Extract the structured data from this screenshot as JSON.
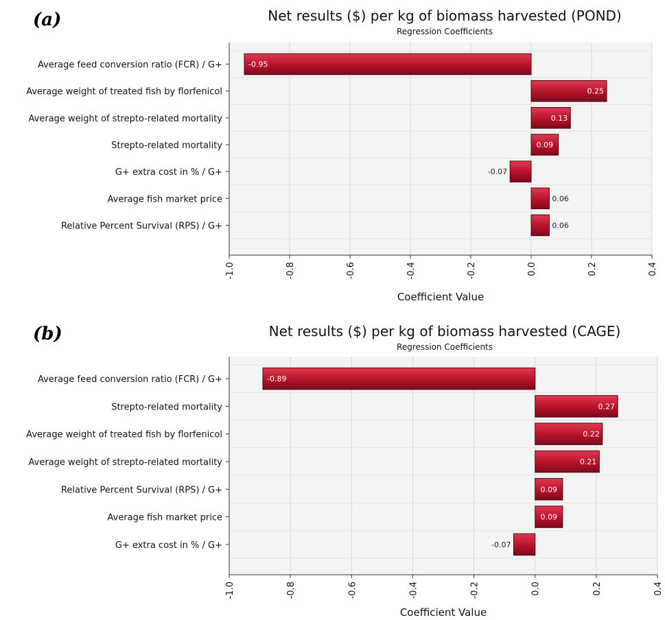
{
  "chart_data": [
    {
      "panel_label": "(a)",
      "type": "bar",
      "orientation": "horizontal",
      "title": "Net results ($) per kg of biomass harvested (POND)",
      "subtitle": "Regression Coefficients",
      "xlabel": "Coefficient Value",
      "xlim": [
        -1.0,
        0.4
      ],
      "xticks": [
        "-1.0",
        "-0.8",
        "-0.6",
        "-0.4",
        "-0.2",
        "0.0",
        "0.2",
        "0.4"
      ],
      "grid": true,
      "categories": [
        "Average feed conversion ratio (FCR) / G+",
        "Average weight of treated fish by florfenicol",
        "Average weight of strepto-related mortality",
        "Strepto-related mortality",
        "G+ extra cost in % / G+",
        "Average fish market price",
        "Relative Percent Survival (RPS) / G+"
      ],
      "values": [
        -0.95,
        0.25,
        0.13,
        0.09,
        -0.07,
        0.06,
        0.06
      ],
      "value_labels": [
        "-0.95",
        "0.25",
        "0.13",
        "0.09",
        "-0.07",
        "0.06",
        "0.06"
      ],
      "bar_color": "#b5122b"
    },
    {
      "panel_label": "(b)",
      "type": "bar",
      "orientation": "horizontal",
      "title": "Net results ($) per kg of biomass harvested  (CAGE)",
      "subtitle": "Regression Coefficients",
      "xlabel": "Coefficient Value",
      "xlim": [
        -1.0,
        0.4
      ],
      "xticks": [
        "-1.0",
        "-0.8",
        "-0.6",
        "-0.4",
        "-0.2",
        "0.0",
        "0.2",
        "0.4"
      ],
      "grid": true,
      "categories": [
        "Average feed conversion ratio (FCR) / G+",
        "Strepto-related mortality",
        "Average weight of treated fish by florfenicol",
        "Average weight of strepto-related mortality",
        "Relative Percent Survival (RPS) / G+",
        "Average fish market price",
        "G+ extra cost in % / G+"
      ],
      "values": [
        -0.89,
        0.27,
        0.22,
        0.21,
        0.09,
        0.09,
        -0.07
      ],
      "value_labels": [
        "-0.89",
        "0.27",
        "0.22",
        "0.21",
        "0.09",
        "0.09",
        "-0.07"
      ],
      "bar_color": "#b5122b"
    }
  ]
}
